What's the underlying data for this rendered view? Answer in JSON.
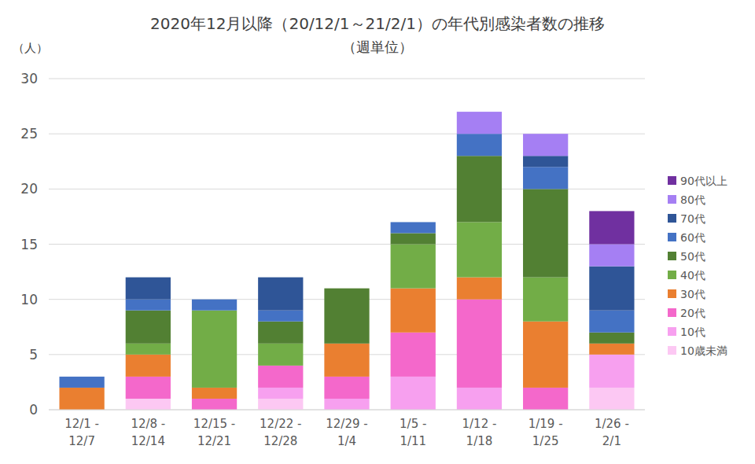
{
  "chart_data": {
    "type": "bar",
    "stacked": true,
    "title": "2020年12月以降（20/12/1～21/2/1）の年代別感染者数の推移",
    "subtitle": "（週単位）",
    "y_label": "（人）",
    "categories": [
      "12/1 - 12/7",
      "12/8 - 12/14",
      "12/15 - 12/21",
      "12/22 - 12/28",
      "12/29 - 1/4",
      "1/5 - 1/11",
      "1/12 - 1/18",
      "1/19 - 1/25",
      "1/26 - 2/1"
    ],
    "series": [
      {
        "name": "10歳未満",
        "color": "#fcc8f3",
        "values": [
          0,
          1,
          0,
          1,
          0,
          0,
          0,
          0,
          2
        ]
      },
      {
        "name": "10代",
        "color": "#f7a0ef",
        "values": [
          0,
          0,
          0,
          1,
          1,
          3,
          2,
          0,
          3
        ]
      },
      {
        "name": "20代",
        "color": "#f468cb",
        "values": [
          0,
          2,
          1,
          2,
          2,
          4,
          8,
          2,
          0
        ]
      },
      {
        "name": "30代",
        "color": "#ea7f30",
        "values": [
          2,
          2,
          1,
          0,
          3,
          4,
          2,
          6,
          1
        ]
      },
      {
        "name": "40代",
        "color": "#72ad47",
        "values": [
          0,
          1,
          7,
          2,
          0,
          4,
          5,
          4,
          0
        ]
      },
      {
        "name": "50代",
        "color": "#528033",
        "values": [
          0,
          3,
          0,
          2,
          5,
          1,
          6,
          8,
          1
        ]
      },
      {
        "name": "60代",
        "color": "#4472c4",
        "values": [
          1,
          1,
          1,
          1,
          0,
          1,
          2,
          2,
          2
        ]
      },
      {
        "name": "70代",
        "color": "#2f5597",
        "values": [
          0,
          2,
          0,
          3,
          0,
          0,
          0,
          1,
          4
        ]
      },
      {
        "name": "80代",
        "color": "#a57ff3",
        "values": [
          0,
          0,
          0,
          0,
          0,
          0,
          2,
          2,
          2
        ]
      },
      {
        "name": "90代以上",
        "color": "#7030a0",
        "values": [
          0,
          0,
          0,
          0,
          0,
          0,
          0,
          0,
          3
        ]
      }
    ],
    "ylim": [
      0,
      30
    ],
    "yticks": [
      0,
      5,
      10,
      15,
      20,
      25,
      30
    ],
    "grid": true,
    "legend": "right"
  }
}
